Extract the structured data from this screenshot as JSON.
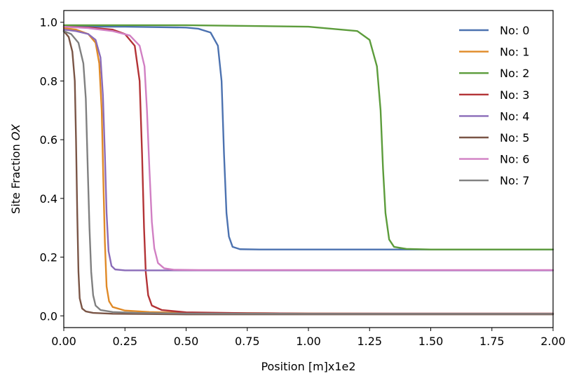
{
  "chart_data": {
    "type": "line",
    "title": "",
    "xlabel": "Position [m]x1e2",
    "ylabel": "Site Fraction ",
    "ylabel_italic": "OX",
    "xlim": [
      0.0,
      2.0
    ],
    "ylim": [
      -0.04,
      1.04
    ],
    "xticks": [
      0.0,
      0.25,
      0.5,
      0.75,
      1.0,
      1.25,
      1.5,
      1.75,
      2.0
    ],
    "xtick_labels": [
      "0.00",
      "0.25",
      "0.50",
      "0.75",
      "1.00",
      "1.25",
      "1.50",
      "1.75",
      "2.00"
    ],
    "yticks": [
      0.0,
      0.2,
      0.4,
      0.6,
      0.8,
      1.0
    ],
    "ytick_labels": [
      "0.0",
      "0.2",
      "0.4",
      "0.6",
      "0.8",
      "1.0"
    ],
    "grid": false,
    "legend_position": "top-right",
    "series": [
      {
        "name": "No: 0",
        "color": "#4c72b0",
        "x": [
          0.0,
          0.25,
          0.5,
          0.55,
          0.6,
          0.63,
          0.645,
          0.655,
          0.665,
          0.675,
          0.69,
          0.72,
          0.8,
          1.0,
          1.5,
          2.0
        ],
        "y": [
          0.985,
          0.985,
          0.982,
          0.978,
          0.965,
          0.92,
          0.8,
          0.55,
          0.35,
          0.27,
          0.235,
          0.227,
          0.226,
          0.226,
          0.226,
          0.226
        ]
      },
      {
        "name": "No: 1",
        "color": "#e08a27",
        "x": [
          0.0,
          0.05,
          0.1,
          0.13,
          0.145,
          0.155,
          0.162,
          0.168,
          0.175,
          0.185,
          0.2,
          0.25,
          0.35,
          0.5,
          1.0,
          1.5,
          2.0
        ],
        "y": [
          0.98,
          0.975,
          0.96,
          0.93,
          0.86,
          0.7,
          0.45,
          0.25,
          0.1,
          0.05,
          0.03,
          0.018,
          0.013,
          0.01,
          0.008,
          0.007,
          0.007
        ]
      },
      {
        "name": "No: 2",
        "color": "#5c9c3b",
        "x": [
          0.0,
          0.5,
          1.0,
          1.2,
          1.25,
          1.28,
          1.295,
          1.305,
          1.315,
          1.33,
          1.35,
          1.4,
          1.5,
          2.0
        ],
        "y": [
          0.99,
          0.99,
          0.985,
          0.97,
          0.94,
          0.85,
          0.7,
          0.5,
          0.35,
          0.26,
          0.235,
          0.228,
          0.226,
          0.226
        ]
      },
      {
        "name": "No: 3",
        "color": "#b33336",
        "x": [
          0.0,
          0.1,
          0.2,
          0.25,
          0.29,
          0.31,
          0.32,
          0.328,
          0.335,
          0.345,
          0.36,
          0.4,
          0.5,
          0.75,
          1.0,
          2.0
        ],
        "y": [
          0.985,
          0.982,
          0.975,
          0.96,
          0.92,
          0.8,
          0.55,
          0.3,
          0.15,
          0.07,
          0.035,
          0.02,
          0.012,
          0.009,
          0.008,
          0.008
        ]
      },
      {
        "name": "No: 4",
        "color": "#8a6bb8",
        "x": [
          0.0,
          0.05,
          0.1,
          0.13,
          0.15,
          0.16,
          0.168,
          0.175,
          0.183,
          0.195,
          0.21,
          0.25,
          0.5,
          1.0,
          2.0
        ],
        "y": [
          0.975,
          0.97,
          0.96,
          0.94,
          0.88,
          0.75,
          0.55,
          0.35,
          0.22,
          0.17,
          0.158,
          0.155,
          0.155,
          0.155,
          0.155
        ]
      },
      {
        "name": "No: 5",
        "color": "#7a5546",
        "x": [
          0.0,
          0.02,
          0.035,
          0.045,
          0.05,
          0.055,
          0.06,
          0.065,
          0.075,
          0.09,
          0.12,
          0.2,
          0.5,
          1.0,
          2.0
        ],
        "y": [
          0.97,
          0.95,
          0.9,
          0.8,
          0.6,
          0.35,
          0.15,
          0.06,
          0.025,
          0.015,
          0.01,
          0.007,
          0.005,
          0.005,
          0.005
        ]
      },
      {
        "name": "No: 6",
        "color": "#d17fc3",
        "x": [
          0.0,
          0.1,
          0.2,
          0.27,
          0.31,
          0.33,
          0.34,
          0.35,
          0.36,
          0.37,
          0.385,
          0.41,
          0.45,
          0.55,
          1.0,
          2.0
        ],
        "y": [
          0.985,
          0.98,
          0.97,
          0.955,
          0.92,
          0.85,
          0.7,
          0.5,
          0.32,
          0.23,
          0.18,
          0.162,
          0.157,
          0.156,
          0.156,
          0.156
        ]
      },
      {
        "name": "No: 7",
        "color": "#808080",
        "x": [
          0.0,
          0.03,
          0.06,
          0.08,
          0.09,
          0.098,
          0.105,
          0.112,
          0.12,
          0.13,
          0.15,
          0.2,
          0.3,
          0.5,
          1.0,
          2.0
        ],
        "y": [
          0.97,
          0.96,
          0.93,
          0.86,
          0.74,
          0.5,
          0.3,
          0.15,
          0.07,
          0.035,
          0.02,
          0.013,
          0.01,
          0.008,
          0.007,
          0.007
        ]
      }
    ]
  }
}
